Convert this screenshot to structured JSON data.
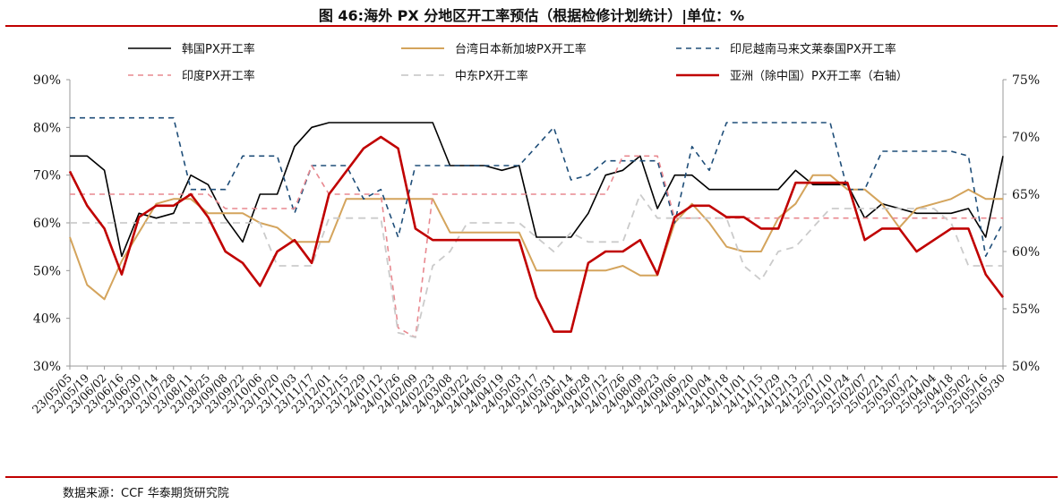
{
  "header": {
    "title": "图 46:海外 PX 分地区开工率预估（根据检修计划统计）|单位：%"
  },
  "footer": {
    "source": "数据来源：CCF  华泰期货研究院"
  },
  "chart_data": {
    "type": "line",
    "x": [
      "23/05/05",
      "23/05/19",
      "23/06/02",
      "23/06/16",
      "23/06/30",
      "23/07/14",
      "23/07/28",
      "23/08/11",
      "23/08/25",
      "23/09/08",
      "23/09/22",
      "23/10/06",
      "23/10/20",
      "23/11/03",
      "23/11/17",
      "23/12/01",
      "23/12/15",
      "23/12/29",
      "24/01/12",
      "24/01/26",
      "24/02/09",
      "24/02/23",
      "24/03/08",
      "24/03/22",
      "24/04/05",
      "24/04/19",
      "24/05/03",
      "24/05/17",
      "24/05/31",
      "24/06/14",
      "24/06/28",
      "24/07/12",
      "24/07/26",
      "24/08/09",
      "24/08/23",
      "24/09/06",
      "24/09/20",
      "24/10/04",
      "24/10/18",
      "24/11/01",
      "24/11/15",
      "24/11/29",
      "24/12/13",
      "24/12/27",
      "25/01/10",
      "25/01/24",
      "25/02/07",
      "25/02/21",
      "25/03/07",
      "25/03/21",
      "25/04/04",
      "25/04/18",
      "25/05/02",
      "25/05/16",
      "25/05/30"
    ],
    "ylim": [
      30,
      90
    ],
    "yticks": [
      "30%",
      "40%",
      "50%",
      "60%",
      "70%",
      "80%",
      "90%"
    ],
    "y2lim": [
      50,
      75
    ],
    "y2ticks": [
      "50%",
      "55%",
      "60%",
      "65%",
      "70%",
      "75%"
    ],
    "series": [
      {
        "name": "韩国PX开工率",
        "color": "#000000",
        "dash": "",
        "width": 1.6,
        "axis": "left",
        "values": [
          74,
          74,
          71,
          53,
          62,
          61,
          62,
          70,
          68,
          61,
          56,
          66,
          66,
          76,
          80,
          81,
          81,
          81,
          81,
          81,
          81,
          81,
          72,
          72,
          72,
          71,
          72,
          57,
          57,
          57,
          62,
          70,
          71,
          74,
          63,
          70,
          70,
          67,
          67,
          67,
          67,
          67,
          71,
          68,
          68,
          68,
          61,
          64,
          63,
          62,
          62,
          62,
          63,
          57,
          74
        ]
      },
      {
        "name": "台湾日本新加坡PX开工率",
        "color": "#d4a45c",
        "dash": "",
        "width": 2,
        "axis": "left",
        "values": [
          57,
          47,
          44,
          52,
          58,
          64,
          65,
          65,
          62,
          62,
          62,
          60,
          59,
          56,
          56,
          56,
          65,
          65,
          65,
          65,
          65,
          65,
          58,
          58,
          58,
          58,
          58,
          50,
          50,
          50,
          50,
          50,
          51,
          49,
          49,
          60,
          64,
          60,
          55,
          54,
          54,
          61,
          64,
          70,
          70,
          67,
          67,
          64,
          59,
          63,
          64,
          65,
          67,
          65,
          65
        ]
      },
      {
        "name": "印尼越南马来文莱泰国PX开工率",
        "color": "#1f4e79",
        "dash": "6,5",
        "width": 1.6,
        "axis": "left",
        "values": [
          82,
          82,
          82,
          82,
          82,
          82,
          82,
          67,
          67,
          67,
          74,
          74,
          74,
          62,
          72,
          72,
          72,
          65,
          67,
          57,
          72,
          72,
          72,
          72,
          72,
          72,
          72,
          76,
          80,
          69,
          70,
          73,
          73,
          73,
          73,
          60,
          76,
          71,
          81,
          81,
          81,
          81,
          81,
          81,
          81,
          67,
          67,
          75,
          75,
          75,
          75,
          75,
          74,
          53,
          60
        ]
      },
      {
        "name": "印度PX开工率",
        "color": "#e8888f",
        "dash": "6,5",
        "width": 1.6,
        "axis": "left",
        "values": [
          66,
          66,
          66,
          66,
          66,
          66,
          66,
          66,
          66,
          63,
          63,
          63,
          63,
          63,
          72,
          66,
          66,
          66,
          66,
          38,
          36,
          66,
          66,
          66,
          66,
          66,
          66,
          66,
          66,
          66,
          66,
          66,
          74,
          74,
          74,
          61,
          61,
          61,
          61,
          61,
          61,
          61,
          61,
          61,
          61,
          61,
          61,
          61,
          61,
          61,
          61,
          61,
          61,
          61,
          61
        ]
      },
      {
        "name": "中东PX开工率",
        "color": "#cbcbcb",
        "dash": "8,6",
        "width": 1.8,
        "axis": "left",
        "values": [
          60,
          60,
          60,
          60,
          60,
          60,
          60,
          60,
          60,
          60,
          60,
          60,
          51,
          51,
          51,
          61,
          61,
          61,
          61,
          37,
          36,
          51,
          54,
          60,
          60,
          60,
          60,
          57,
          54,
          58,
          56,
          56,
          56,
          66,
          61,
          61,
          61,
          61,
          61,
          51,
          48,
          54,
          55,
          59,
          63,
          63,
          63,
          63,
          63,
          63,
          63,
          60,
          51,
          51,
          51
        ]
      },
      {
        "name": "亚洲（除中国）PX开工率（右轴）",
        "color": "#c00000",
        "dash": "",
        "width": 2.6,
        "axis": "right",
        "values": [
          67,
          64,
          62,
          58,
          63,
          64,
          64,
          65,
          63,
          60,
          59,
          57,
          60,
          61,
          59,
          65,
          67,
          69,
          70,
          69,
          62,
          61,
          61,
          61,
          61,
          61,
          61,
          56,
          53,
          53,
          59,
          60,
          60,
          61,
          58,
          63,
          64,
          64,
          63,
          63,
          62,
          62,
          66,
          66,
          66,
          66,
          61,
          62,
          62,
          60,
          61,
          62,
          62,
          58,
          56
        ]
      }
    ]
  },
  "legend": [
    {
      "label": "韩国PX开工率",
      "col": 0,
      "row": 0
    },
    {
      "label": "台湾日本新加坡PX开工率",
      "col": 1,
      "row": 0
    },
    {
      "label": "印尼越南马来文莱泰国PX开工率",
      "col": 2,
      "row": 0
    },
    {
      "label": "印度PX开工率",
      "col": 0,
      "row": 1
    },
    {
      "label": "中东PX开工率",
      "col": 1,
      "row": 1
    },
    {
      "label": "亚洲（除中国）PX开工率（右轴）",
      "col": 2,
      "row": 1
    }
  ]
}
